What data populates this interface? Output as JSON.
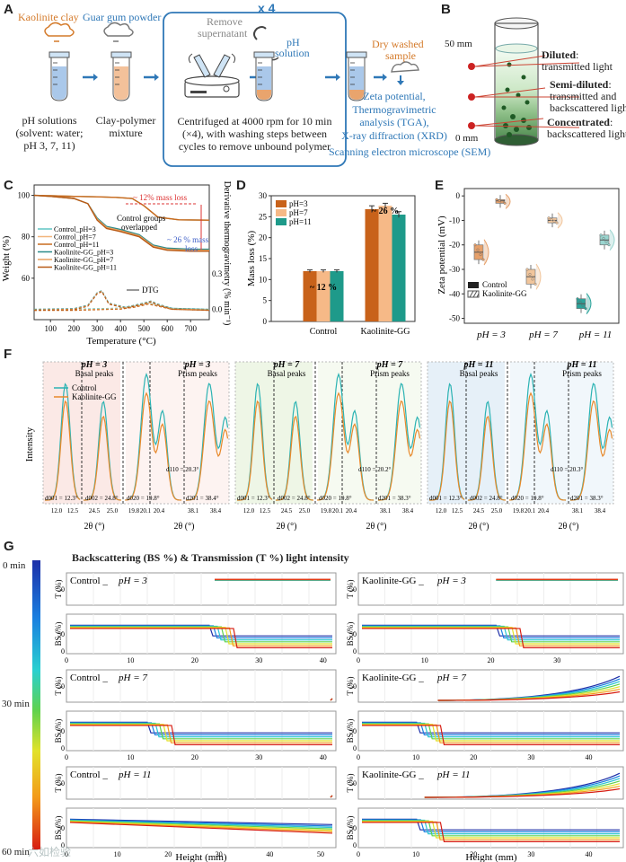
{
  "panels": {
    "A": "A",
    "B": "B",
    "C": "C",
    "D": "D",
    "E": "E",
    "F": "F",
    "G": "G"
  },
  "A": {
    "kaolinite": "Kaolinite clay",
    "guar": "Guar gum powder",
    "repeat": "x 4",
    "remove": "Remove",
    "supernatant": "supernatant",
    "ph": "pH",
    "solution": "solution",
    "dry1": "Dry washed",
    "dry2": "sample",
    "ph_solutions": [
      "pH solutions",
      "(solvent: water;",
      "pH 3, 7, 11)"
    ],
    "mixture": [
      "Clay-polymer",
      "mixture"
    ],
    "centrifuge": [
      "Centrifuged at 4000 rpm for 10 min",
      "(×4), with washing steps between",
      "cycles to remove unbound polymer"
    ],
    "analyses": [
      "Zeta potential,",
      "Thermogravimetric",
      "analysis (TGA),",
      "X-ray diffraction (XRD)",
      "Scanning electron microscope (SEM)"
    ]
  },
  "B": {
    "top": "50 mm",
    "bottom": "0 mm",
    "labels": [
      {
        "bold": "Diluted",
        "rest": [
          "transmitted light"
        ]
      },
      {
        "bold": "Semi-diluted",
        "rest": [
          "transmitted and",
          "backscattered light"
        ]
      },
      {
        "bold": "Concentrated",
        "rest": [
          "backscattered light"
        ]
      }
    ]
  },
  "C": {
    "ylabel": "Weight (%)",
    "y2label": "Derivative thermogravimetry (% min⁻¹)",
    "xlabel": "Temperature (°C)",
    "xticks": [
      "100",
      "200",
      "300",
      "400",
      "500",
      "600",
      "700"
    ],
    "yticks": [
      "100",
      "80",
      "60"
    ],
    "y2ticks": [
      "0.3",
      "0.0"
    ],
    "legend": [
      "Control_pH=3",
      "Control_pH=7",
      "Control_pH=11",
      "Kaolinite-GG_pH=3",
      "Kaolinite-GG_pH=7",
      "Kaolinite-GG_pH=11"
    ],
    "ann_mass12": "~ 12% mass loss",
    "ann_mass26": [
      "~ 26 % mass",
      "loss"
    ],
    "ann_overlap": [
      "Control groups",
      "overlapped"
    ],
    "ann_dtg": "DTG",
    "chart_data": {
      "type": "line",
      "xlim": [
        30,
        780
      ],
      "ylim": [
        40,
        105
      ],
      "series": [
        {
          "name": "Control_pH=3",
          "color": "#5fc6c2",
          "x": [
            30,
            100,
            200,
            300,
            380,
            450,
            500,
            560,
            650,
            780
          ],
          "y": [
            100,
            99.8,
            99.5,
            99.3,
            99.0,
            98.5,
            95,
            89.5,
            88.2,
            88
          ]
        },
        {
          "name": "Control_pH=7",
          "color": "#f2b57c",
          "x": [
            30,
            100,
            200,
            300,
            380,
            450,
            500,
            560,
            650,
            780
          ],
          "y": [
            100,
            99.8,
            99.5,
            99.3,
            99.0,
            98.5,
            95,
            89.5,
            88.2,
            88
          ]
        },
        {
          "name": "Control_pH=11",
          "color": "#c96a1e",
          "x": [
            30,
            100,
            200,
            300,
            380,
            450,
            500,
            560,
            650,
            780
          ],
          "y": [
            100,
            99.8,
            99.5,
            99.3,
            99.0,
            98.5,
            95,
            89.5,
            88.2,
            88
          ]
        },
        {
          "name": "Kaolinite-GG_pH=3",
          "color": "#2a8b8a",
          "x": [
            30,
            100,
            200,
            260,
            300,
            340,
            400,
            480,
            540,
            600,
            700,
            780
          ],
          "y": [
            100,
            99.5,
            98.5,
            96,
            89,
            85,
            83.5,
            81,
            76,
            74.5,
            74,
            74
          ]
        },
        {
          "name": "Kaolinite-GG_pH=7",
          "color": "#e8a160",
          "x": [
            30,
            100,
            200,
            260,
            300,
            340,
            400,
            480,
            540,
            600,
            700,
            780
          ],
          "y": [
            100,
            99.5,
            98.5,
            96,
            88.5,
            84.5,
            83,
            80.5,
            75.5,
            74,
            73.5,
            73.5
          ]
        },
        {
          "name": "Kaolinite-GG_pH=11",
          "color": "#b85a16",
          "x": [
            30,
            100,
            200,
            260,
            300,
            340,
            400,
            480,
            540,
            600,
            700,
            780
          ],
          "y": [
            100,
            99.5,
            98.5,
            96,
            88,
            84,
            82.5,
            80,
            75,
            73.5,
            73,
            73
          ]
        }
      ],
      "dtg": [
        {
          "name": "Control",
          "x": [
            30,
            200,
            300,
            400,
            460,
            520,
            560,
            620,
            780
          ],
          "y": [
            45,
            45,
            45.3,
            45.6,
            46.5,
            48,
            47,
            45.5,
            45
          ]
        },
        {
          "name": "Kaolinite-GG",
          "x": [
            30,
            200,
            260,
            300,
            320,
            350,
            420,
            500,
            530,
            560,
            620,
            780
          ],
          "y": [
            45,
            45.3,
            47,
            53,
            54,
            48,
            46,
            48,
            49,
            47.5,
            45.5,
            45
          ]
        }
      ]
    }
  },
  "D": {
    "ylabel": "Mass loss (%)",
    "legend": [
      "pH=3",
      "pH=7",
      "pH=11"
    ],
    "ann12": "~ 12 %",
    "ann26": "~ 26 %",
    "yticks": [
      "0",
      "5",
      "10",
      "15",
      "20",
      "25",
      "30"
    ],
    "chart_data": {
      "type": "bar",
      "categories": [
        "Control",
        "Kaolinite-GG"
      ],
      "ylim": [
        0,
        30
      ],
      "series": [
        {
          "name": "pH=3",
          "color": "#c8621a",
          "values": [
            12,
            26.8
          ],
          "err": [
            0.3,
            0.8
          ]
        },
        {
          "name": "pH=7",
          "color": "#f6b987",
          "values": [
            12,
            27.6
          ],
          "err": [
            0.3,
            0.6
          ]
        },
        {
          "name": "pH=11",
          "color": "#1e9a8a",
          "values": [
            12,
            25.5
          ],
          "err": [
            0.3,
            0.7
          ]
        }
      ]
    }
  },
  "E": {
    "ylabel": "Zeta potential (mV)",
    "yticks": [
      "0",
      "-10",
      "-20",
      "-30",
      "-40",
      "-50"
    ],
    "xlabels": [
      "pH = 3",
      "pH = 7",
      "pH = 11"
    ],
    "legend": [
      "Control",
      "Kaolinite-GG"
    ],
    "chart_data": {
      "type": "box",
      "ylim": [
        -52,
        3
      ],
      "groups": [
        {
          "ph": "3",
          "sample": "Control",
          "median": -23,
          "q1": -26,
          "q3": -20,
          "color": "#e6a06a"
        },
        {
          "ph": "3",
          "sample": "Kaolinite-GG",
          "median": -2,
          "q1": -3,
          "q3": -1.5,
          "color": "#e6a06a"
        },
        {
          "ph": "7",
          "sample": "Control",
          "median": -33,
          "q1": -36,
          "q3": -30,
          "color": "#f1c59b"
        },
        {
          "ph": "7",
          "sample": "Kaolinite-GG",
          "median": -10,
          "q1": -11,
          "q3": -9,
          "color": "#f1c59b"
        },
        {
          "ph": "11",
          "sample": "Control",
          "median": -44,
          "q1": -46,
          "q3": -42,
          "color": "#2ba39a"
        },
        {
          "ph": "11",
          "sample": "Kaolinite-GG",
          "median": -18,
          "q1": -20,
          "q3": -16,
          "color": "#9ad5cf"
        }
      ]
    }
  },
  "F": {
    "ylabel": "Intensity",
    "legend": [
      "Control",
      "Kaolinite-GG"
    ],
    "xlabel": "2θ (°)",
    "groups": [
      {
        "title": "pH = 3",
        "basal": "Basal peaks",
        "prism": "Prism peaks",
        "d001": "d001 = 12.3°",
        "d002": "d002 = 24.8°",
        "d020": "d020 = 19.8°",
        "d110": "d110 = 20.3°",
        "d201": "d201 = 38.4°",
        "ticks": [
          "12.0",
          "12.5",
          "24.5",
          "25.0",
          "19.8",
          "20.1",
          "20.4",
          "38.1",
          "38.4"
        ]
      },
      {
        "title": "pH = 7",
        "basal": "Basal peaks",
        "prism": "Prism peaks",
        "d001": "d001 = 12.3°",
        "d002": "d002 = 24.8°",
        "d020": "d020 = 19.8°",
        "d110": "d110 = 20.2°",
        "d201": "d201 = 38.3°",
        "ticks": [
          "12.0",
          "12.5",
          "24.5",
          "25.0",
          "19.8",
          "20.1",
          "20.4",
          "38.1",
          "38.4"
        ]
      },
      {
        "title": "pH = 11",
        "basal": "Basal peaks",
        "prism": "Prism peaks",
        "d001": "d001 = 12.3°",
        "d002": "d002 = 24.8°",
        "d020": "d020 = 19.8°",
        "d110": "d110 = 20.3°",
        "d201": "d201 = 38.3°",
        "ticks": [
          "12.0",
          "12.5",
          "24.5",
          "25.0",
          "19.8",
          "20.1",
          "20.4",
          "38.1",
          "38.4"
        ]
      }
    ]
  },
  "G": {
    "title": "Backscattering (BS %) & Transmission (T %) light intensity",
    "time_labels": [
      "0 min",
      "30 min",
      "60 min"
    ],
    "xlabel": "Height (mm)",
    "tlabel": "T (%)",
    "bslabel": "BS (%)",
    "panels": [
      {
        "sample": "Control _",
        "ph": "pH = 3",
        "xticks": [
          "0",
          "10",
          "20",
          "30",
          "40"
        ],
        "xmax": 42
      },
      {
        "sample": "Kaolinite-GG _",
        "ph": "pH = 3",
        "xticks": [
          "0",
          "10",
          "20",
          "30"
        ],
        "xmax": 40
      },
      {
        "sample": "Control _",
        "ph": "pH = 7",
        "xticks": [
          "0",
          "10",
          "20",
          "30",
          "40"
        ],
        "xmax": 42
      },
      {
        "sample": "Kaolinite-GG _",
        "ph": "pH = 7",
        "xticks": [
          "0",
          "10",
          "20",
          "30",
          "40"
        ],
        "xmax": 46
      },
      {
        "sample": "Control _",
        "ph": "pH = 11",
        "xticks": [
          "0",
          "10",
          "20",
          "30",
          "40",
          "50"
        ],
        "xmax": 53
      },
      {
        "sample": "Kaolinite-GG _",
        "ph": "pH = 11",
        "xticks": [
          "0",
          "10",
          "20",
          "30",
          "40"
        ],
        "xmax": 46
      }
    ],
    "yticks_t": [
      "50"
    ],
    "yticks_bs": [
      "50",
      "0"
    ]
  },
  "watermark": "六如检验"
}
